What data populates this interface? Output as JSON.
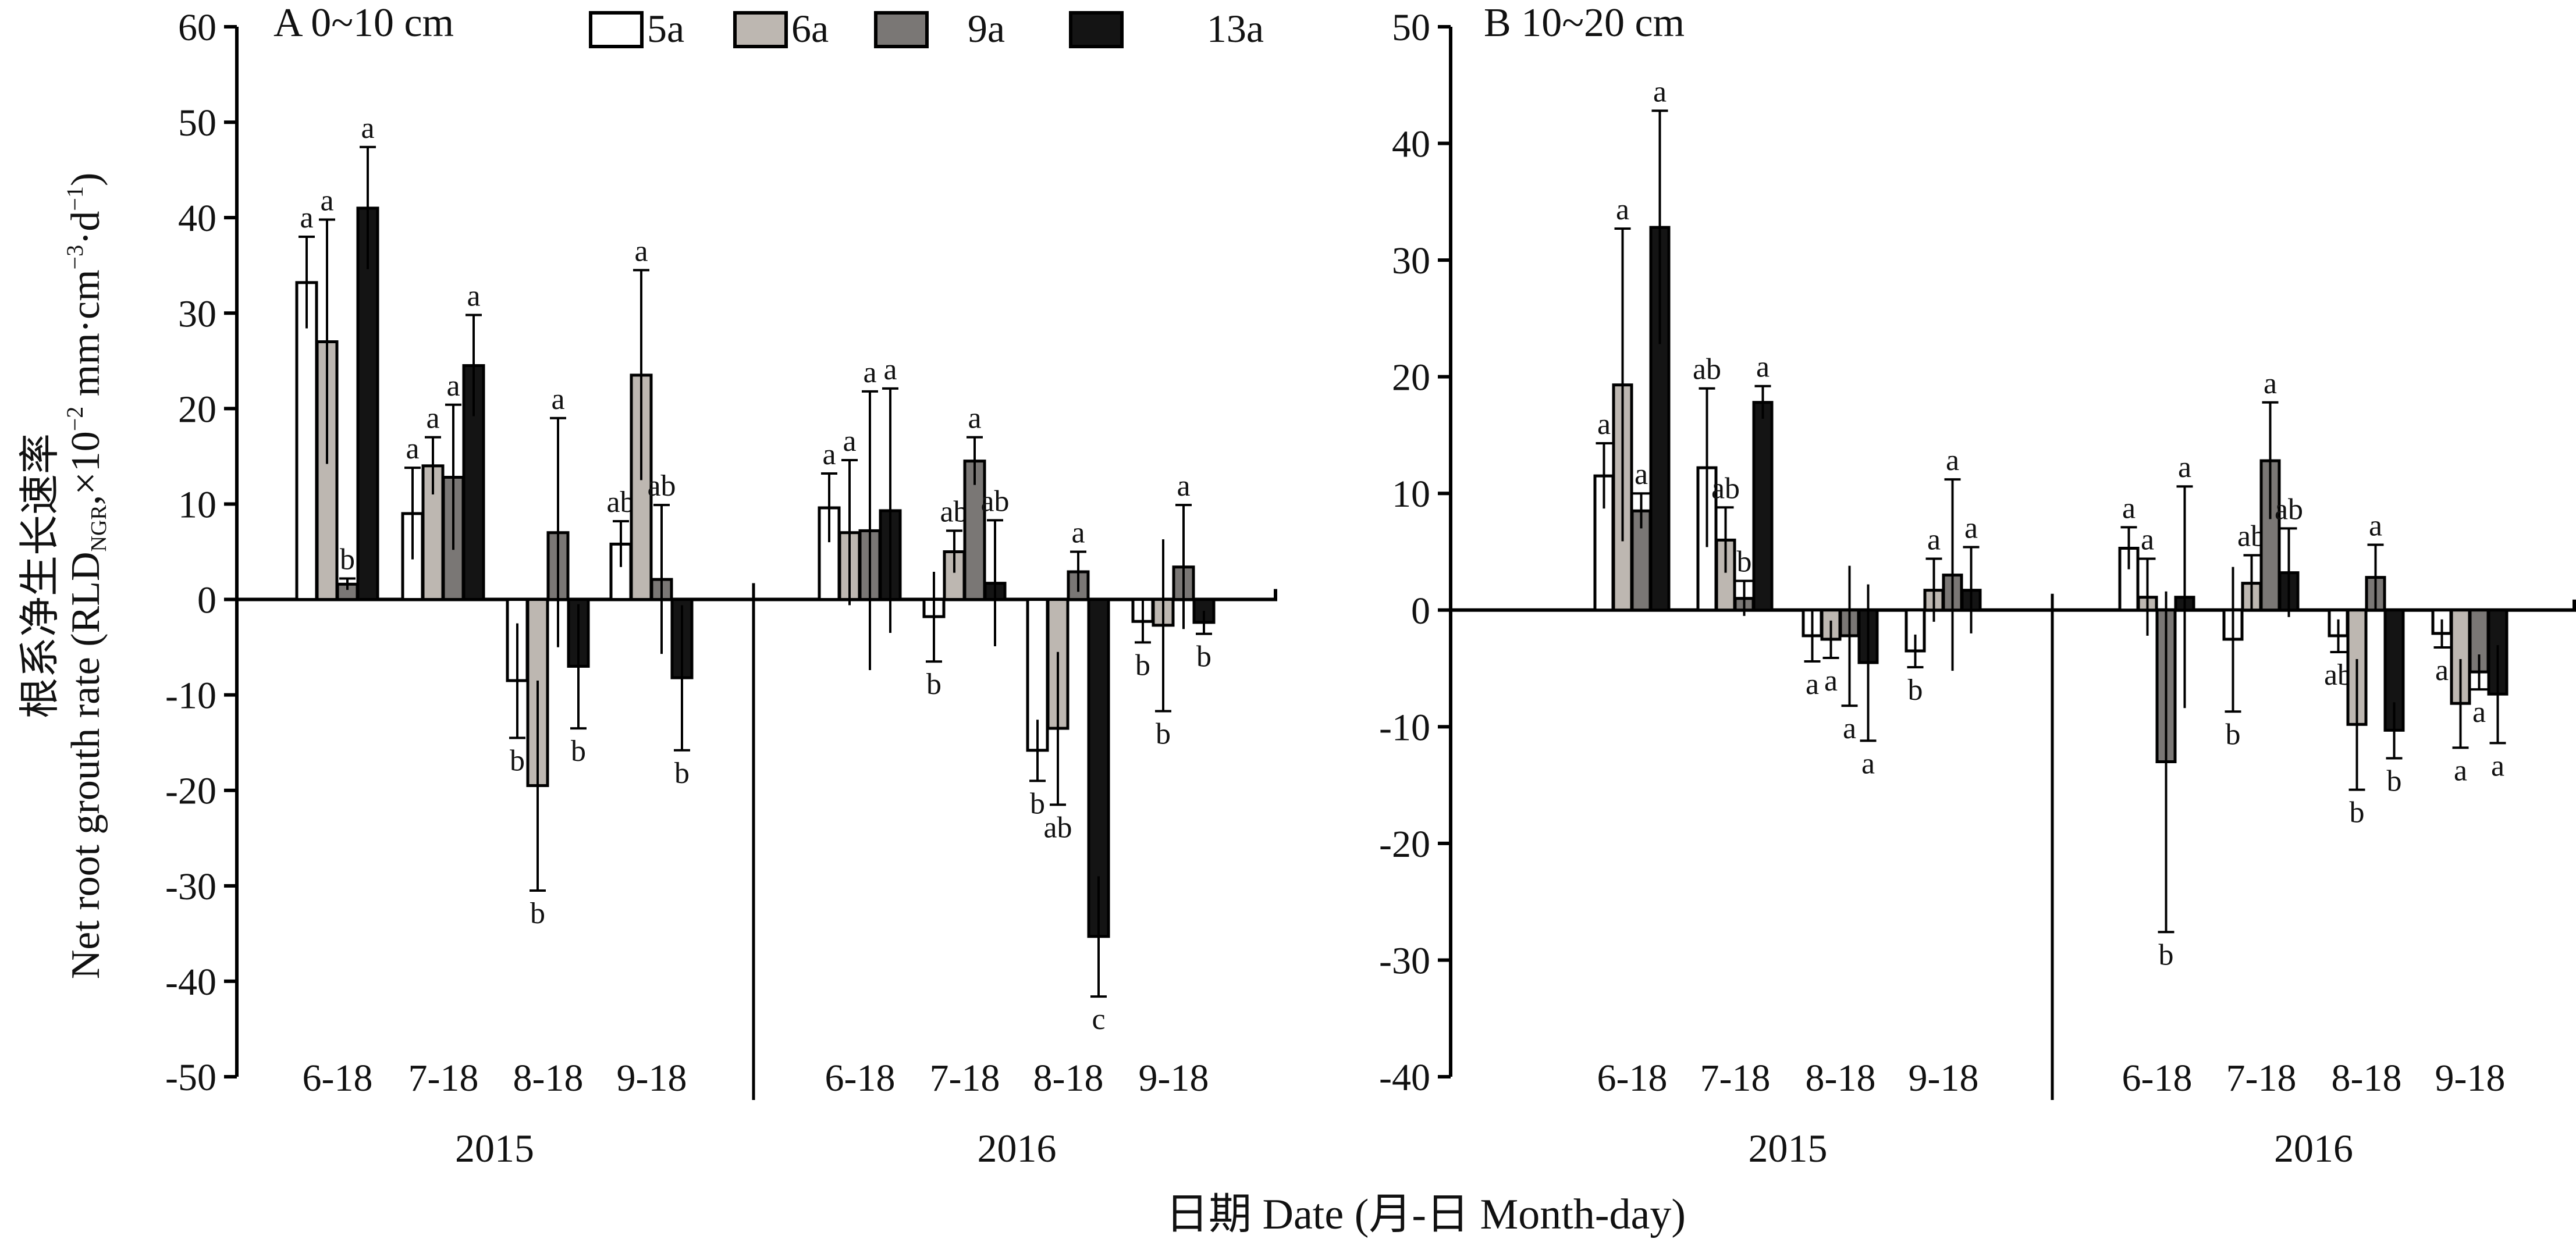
{
  "chart_data": {
    "type": "bar",
    "y_axis_title_cn": "根系净生长速率",
    "y_axis_title_en": "Net root grouth rate (RLD",
    "y_axis_title_sub": "NGR",
    "y_axis_title_unit": ",×10",
    "y_axis_title_exp1": "−2",
    "y_axis_title_unit2": " mm·cm",
    "y_axis_title_exp2": "−3",
    "y_axis_title_unit3": "·d",
    "y_axis_title_exp3": "−1",
    "y_axis_title_close": ")",
    "x_axis_title": "日期 Date (月-日 Month-day)",
    "legend": [
      {
        "name": "5a",
        "fill": "#ffffff"
      },
      {
        "name": "6a",
        "fill": "#bdb7b1"
      },
      {
        "name": "9a",
        "fill": "#7a7775"
      },
      {
        "name": "13a",
        "fill": "#141414"
      }
    ],
    "panels": [
      {
        "title": "A 0~10 cm",
        "ylim": [
          -50,
          60
        ],
        "yticks": [
          60,
          50,
          40,
          30,
          20,
          10,
          0,
          -10,
          -20,
          -30,
          -40,
          -50
        ],
        "groups": [
          {
            "year": "2015",
            "dates": [
              {
                "label": "6-18",
                "bars": [
                  {
                    "value": 33.2,
                    "error": 4.8,
                    "letter": "a"
                  },
                  {
                    "value": 27.0,
                    "error": 12.8,
                    "letter": "a"
                  },
                  {
                    "value": 1.6,
                    "error": 0.6,
                    "letter": "b"
                  },
                  {
                    "value": 41.0,
                    "error": 6.4,
                    "letter": "a"
                  }
                ]
              },
              {
                "label": "7-18",
                "bars": [
                  {
                    "value": 9.0,
                    "error": 4.8,
                    "letter": "a"
                  },
                  {
                    "value": 14.0,
                    "error": 3.0,
                    "letter": "a"
                  },
                  {
                    "value": 12.8,
                    "error": 7.6,
                    "letter": "a"
                  },
                  {
                    "value": 24.5,
                    "error": 5.3,
                    "letter": "a"
                  }
                ]
              },
              {
                "label": "8-18",
                "bars": [
                  {
                    "value": -8.5,
                    "error": 6.0,
                    "letter": "b"
                  },
                  {
                    "value": -19.5,
                    "error": 11.0,
                    "letter": "b"
                  },
                  {
                    "value": 7.0,
                    "error": 12.0,
                    "letter": "a"
                  },
                  {
                    "value": -7.0,
                    "error": 6.5,
                    "letter": "b"
                  }
                ]
              },
              {
                "label": "9-18",
                "bars": [
                  {
                    "value": 5.8,
                    "error": 2.4,
                    "letter": "ab"
                  },
                  {
                    "value": 23.5,
                    "error": 11.0,
                    "letter": "a"
                  },
                  {
                    "value": 2.1,
                    "error": 7.8,
                    "letter": "ab"
                  },
                  {
                    "value": -8.2,
                    "error": 7.6,
                    "letter": "b"
                  }
                ]
              }
            ]
          },
          {
            "year": "2016",
            "dates": [
              {
                "label": "6-18",
                "bars": [
                  {
                    "value": 9.6,
                    "error": 3.6,
                    "letter": "a"
                  },
                  {
                    "value": 7.0,
                    "error": 7.6,
                    "letter": "a"
                  },
                  {
                    "value": 7.2,
                    "error": 14.6,
                    "letter": "a"
                  },
                  {
                    "value": 9.3,
                    "error": 12.8,
                    "letter": "a"
                  }
                ]
              },
              {
                "label": "7-18",
                "bars": [
                  {
                    "value": -1.8,
                    "error": 4.7,
                    "letter": "b"
                  },
                  {
                    "value": 5.0,
                    "error": 2.2,
                    "letter": "ab"
                  },
                  {
                    "value": 14.5,
                    "error": 2.5,
                    "letter": "a"
                  },
                  {
                    "value": 1.7,
                    "error": 6.6,
                    "letter": "ab"
                  }
                ]
              },
              {
                "label": "8-18",
                "bars": [
                  {
                    "value": -15.8,
                    "error": 3.2,
                    "letter": "b"
                  },
                  {
                    "value": -13.5,
                    "error": 8.0,
                    "letter": "ab"
                  },
                  {
                    "value": 2.9,
                    "error": 2.1,
                    "letter": "a"
                  },
                  {
                    "value": -35.3,
                    "error": 6.3,
                    "letter": "c"
                  }
                ]
              },
              {
                "label": "9-18",
                "bars": [
                  {
                    "value": -2.3,
                    "error": 2.2,
                    "letter": "b"
                  },
                  {
                    "value": -2.7,
                    "error": 9.0,
                    "letter": "b"
                  },
                  {
                    "value": 3.4,
                    "error": 6.5,
                    "letter": "a"
                  },
                  {
                    "value": -2.4,
                    "error": 1.2,
                    "letter": "b"
                  }
                ]
              }
            ]
          }
        ]
      },
      {
        "title": "B 10~20 cm",
        "ylim": [
          -40,
          50
        ],
        "yticks": [
          50,
          40,
          30,
          20,
          10,
          0,
          -10,
          -20,
          -30,
          -40
        ],
        "groups": [
          {
            "year": "2015",
            "dates": [
              {
                "label": "6-18",
                "bars": [
                  {
                    "value": 11.5,
                    "error": 2.8,
                    "letter": "a"
                  },
                  {
                    "value": 19.3,
                    "error": 13.4,
                    "letter": "a"
                  },
                  {
                    "value": 8.5,
                    "error": 1.5,
                    "letter": "a"
                  },
                  {
                    "value": 32.8,
                    "error": 10.0,
                    "letter": "a"
                  }
                ]
              },
              {
                "label": "7-18",
                "bars": [
                  {
                    "value": 12.2,
                    "error": 6.8,
                    "letter": "ab"
                  },
                  {
                    "value": 6.0,
                    "error": 2.8,
                    "letter": "ab"
                  },
                  {
                    "value": 1.0,
                    "error": 1.5,
                    "letter": "b"
                  },
                  {
                    "value": 17.8,
                    "error": 1.4,
                    "letter": "a"
                  }
                ]
              },
              {
                "label": "8-18",
                "bars": [
                  {
                    "value": -2.2,
                    "error": 2.2,
                    "letter": "a"
                  },
                  {
                    "value": -2.5,
                    "error": 1.6,
                    "letter": "a"
                  },
                  {
                    "value": -2.2,
                    "error": 6.0,
                    "letter": "a"
                  },
                  {
                    "value": -4.5,
                    "error": 6.7,
                    "letter": "a"
                  }
                ]
              },
              {
                "label": "9-18",
                "bars": [
                  {
                    "value": -3.5,
                    "error": 1.4,
                    "letter": "b"
                  },
                  {
                    "value": 1.7,
                    "error": 2.7,
                    "letter": "a"
                  },
                  {
                    "value": 3.0,
                    "error": 8.2,
                    "letter": "a"
                  },
                  {
                    "value": 1.7,
                    "error": 3.7,
                    "letter": "a"
                  }
                ]
              }
            ]
          },
          {
            "year": "2016",
            "dates": [
              {
                "label": "6-18",
                "bars": [
                  {
                    "value": 5.3,
                    "error": 1.8,
                    "letter": "a"
                  },
                  {
                    "value": 1.1,
                    "error": 3.3,
                    "letter": "a"
                  },
                  {
                    "value": -13.0,
                    "error": 14.6,
                    "letter": "b"
                  },
                  {
                    "value": 1.1,
                    "error": 9.5,
                    "letter": "a"
                  }
                ]
              },
              {
                "label": "7-18",
                "bars": [
                  {
                    "value": -2.5,
                    "error": 6.2,
                    "letter": "b"
                  },
                  {
                    "value": 2.3,
                    "error": 2.4,
                    "letter": "ab"
                  },
                  {
                    "value": 12.8,
                    "error": 5.0,
                    "letter": "a"
                  },
                  {
                    "value": 3.2,
                    "error": 3.8,
                    "letter": "ab"
                  }
                ]
              },
              {
                "label": "8-18",
                "bars": [
                  {
                    "value": -2.2,
                    "error": 1.4,
                    "letter": "ab"
                  },
                  {
                    "value": -9.8,
                    "error": 5.6,
                    "letter": "b"
                  },
                  {
                    "value": 2.8,
                    "error": 2.8,
                    "letter": "a"
                  },
                  {
                    "value": -10.3,
                    "error": 2.4,
                    "letter": "b"
                  }
                ]
              },
              {
                "label": "9-18",
                "bars": [
                  {
                    "value": -2.0,
                    "error": 1.2,
                    "letter": "a"
                  },
                  {
                    "value": -8.0,
                    "error": 3.8,
                    "letter": "a"
                  },
                  {
                    "value": -5.3,
                    "error": 1.5,
                    "letter": "a"
                  },
                  {
                    "value": -7.2,
                    "error": 4.2,
                    "letter": "a"
                  }
                ]
              }
            ]
          }
        ]
      }
    ]
  }
}
